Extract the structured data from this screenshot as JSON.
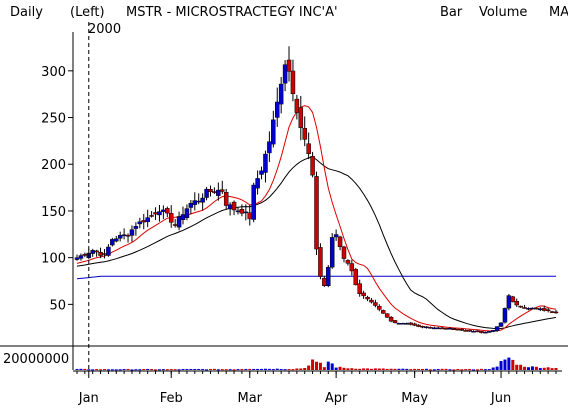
{
  "header": {
    "period": "Daily",
    "scale_side": "(Left)",
    "title": "MSTR - MICROSTRACTEGY INC'A'",
    "legend": [
      {
        "label": "Bar",
        "color": "#000000"
      },
      {
        "label": "Volume",
        "color": "#00b000"
      },
      {
        "label": "MA",
        "color": "#d00000"
      }
    ],
    "year_label": "2000"
  },
  "chart_data": {
    "type": "candlestick",
    "price_axis": {
      "ylim": [
        14,
        333
      ],
      "ticks": [
        50,
        100,
        150,
        200,
        250,
        300
      ]
    },
    "volume_axis": {
      "ylim": [
        0,
        25000000
      ],
      "tick_label": "20000000"
    },
    "x_axis": {
      "total_days": 123,
      "months": [
        {
          "label": "Jan",
          "day": 3
        },
        {
          "label": "Feb",
          "day": 24
        },
        {
          "label": "Mar",
          "day": 44
        },
        {
          "label": "Apr",
          "day": 66
        },
        {
          "label": "May",
          "day": 86
        },
        {
          "label": "Jun",
          "day": 108
        }
      ]
    },
    "colors": {
      "up": "#0000cc",
      "down": "#cc0000",
      "ma_short": "#dd0000",
      "ma_mid": "#000000",
      "ma_long": "#0000cc",
      "volume_up": "#0000cc",
      "volume_down": "#cc0000"
    },
    "price_keypoints": [
      [
        0,
        100
      ],
      [
        4,
        108
      ],
      [
        7,
        102
      ],
      [
        9,
        120
      ],
      [
        13,
        125
      ],
      [
        15,
        135
      ],
      [
        19,
        145
      ],
      [
        21,
        152
      ],
      [
        23,
        145
      ],
      [
        25,
        135
      ],
      [
        27,
        148
      ],
      [
        29,
        158
      ],
      [
        31,
        162
      ],
      [
        33,
        170
      ],
      [
        35,
        172
      ],
      [
        37,
        172
      ],
      [
        38,
        158
      ],
      [
        40,
        152
      ],
      [
        42,
        150
      ],
      [
        44,
        143
      ],
      [
        45,
        175
      ],
      [
        47,
        195
      ],
      [
        49,
        225
      ],
      [
        51,
        265
      ],
      [
        52,
        290
      ],
      [
        53,
        310
      ],
      [
        54,
        300
      ],
      [
        55,
        280
      ],
      [
        56,
        260
      ],
      [
        57,
        240
      ],
      [
        58,
        225
      ],
      [
        59,
        210
      ],
      [
        60,
        185
      ],
      [
        61,
        110
      ],
      [
        62,
        80
      ],
      [
        63,
        70
      ],
      [
        64,
        90
      ],
      [
        65,
        120
      ],
      [
        66,
        125
      ],
      [
        67,
        112
      ],
      [
        68,
        100
      ],
      [
        69,
        95
      ],
      [
        70,
        85
      ],
      [
        71,
        72
      ],
      [
        72,
        62
      ],
      [
        74,
        55
      ],
      [
        76,
        48
      ],
      [
        78,
        40
      ],
      [
        80,
        32
      ],
      [
        82,
        30
      ],
      [
        84,
        30
      ],
      [
        87,
        26
      ],
      [
        91,
        25
      ],
      [
        95,
        24
      ],
      [
        99,
        22
      ],
      [
        103,
        20
      ],
      [
        106,
        22
      ],
      [
        108,
        30
      ],
      [
        109,
        45
      ],
      [
        110,
        60
      ],
      [
        111,
        52
      ],
      [
        113,
        48
      ],
      [
        116,
        46
      ],
      [
        119,
        44
      ],
      [
        122,
        42
      ]
    ],
    "volume_keypoints": [
      [
        0,
        1200000
      ],
      [
        8,
        1000000
      ],
      [
        16,
        1100000
      ],
      [
        24,
        1000000
      ],
      [
        32,
        1200000
      ],
      [
        40,
        1100000
      ],
      [
        44,
        1800000
      ],
      [
        50,
        1600000
      ],
      [
        55,
        1500000
      ],
      [
        58,
        2600000
      ],
      [
        60,
        13000000
      ],
      [
        61,
        9000000
      ],
      [
        62,
        7500000
      ],
      [
        63,
        4000000
      ],
      [
        64,
        11000000
      ],
      [
        65,
        8000000
      ],
      [
        66,
        4000000
      ],
      [
        68,
        2800000
      ],
      [
        72,
        2000000
      ],
      [
        76,
        1800000
      ],
      [
        80,
        1500000
      ],
      [
        86,
        1200000
      ],
      [
        92,
        1200000
      ],
      [
        98,
        1100000
      ],
      [
        102,
        1100000
      ],
      [
        105,
        1600000
      ],
      [
        107,
        3800000
      ],
      [
        108,
        10000000
      ],
      [
        109,
        14000000
      ],
      [
        110,
        16000000
      ],
      [
        111,
        12000000
      ],
      [
        112,
        9000000
      ],
      [
        113,
        6000000
      ],
      [
        116,
        4000000
      ],
      [
        122,
        3000000
      ]
    ]
  }
}
